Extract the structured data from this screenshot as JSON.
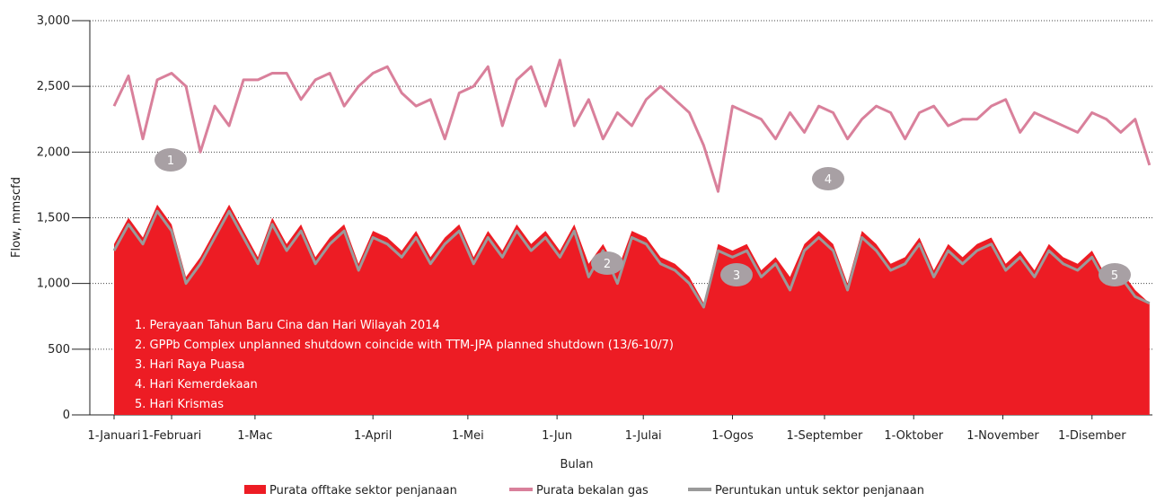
{
  "chart_data": {
    "type": "line",
    "y_label": "Flow, mmscfd",
    "x_label": "Bulan",
    "xlim": [
      1,
      362
    ],
    "xticks": [
      {
        "value": 1,
        "label": "1-Januari"
      },
      {
        "value": 21,
        "label": "1-Februari"
      },
      {
        "value": 50,
        "label": "1-Mac"
      },
      {
        "value": 91,
        "label": "1-April"
      },
      {
        "value": 124,
        "label": "1-Mei"
      },
      {
        "value": 155,
        "label": "1-Jun"
      },
      {
        "value": 185,
        "label": "1-Julai"
      },
      {
        "value": 216,
        "label": "1-Ogos"
      },
      {
        "value": 248,
        "label": "1-September"
      },
      {
        "value": 279,
        "label": "1-Oktober"
      },
      {
        "value": 310,
        "label": "1-November"
      },
      {
        "value": 341,
        "label": "1-Disember"
      }
    ],
    "ylim": [
      0,
      3000
    ],
    "yticks": [
      0,
      {
        "value": 500,
        "label": "500"
      },
      {
        "value": 1000,
        "label": "1,000"
      },
      {
        "value": 1500,
        "label": "1,500"
      },
      {
        "value": 2000,
        "label": "2,000"
      },
      {
        "value": 2500,
        "label": "2,500"
      },
      {
        "value": 3000,
        "label": "3,000"
      }
    ],
    "grid": true,
    "x": [
      1,
      6,
      11,
      16,
      21,
      26,
      31,
      36,
      41,
      46,
      51,
      56,
      61,
      66,
      71,
      76,
      81,
      86,
      91,
      96,
      101,
      106,
      111,
      116,
      121,
      126,
      131,
      136,
      141,
      146,
      151,
      156,
      161,
      166,
      171,
      176,
      181,
      186,
      191,
      196,
      201,
      206,
      211,
      216,
      221,
      226,
      231,
      236,
      241,
      246,
      251,
      256,
      261,
      266,
      271,
      276,
      281,
      286,
      291,
      296,
      301,
      306,
      311,
      316,
      321,
      326,
      331,
      336,
      341,
      346,
      351,
      356,
      361
    ],
    "series": [
      {
        "name": "Purata offtake sektor penjanaan",
        "color": "#ed1c24",
        "style": "area",
        "values": [
          1300,
          1500,
          1350,
          1600,
          1450,
          1050,
          1200,
          1400,
          1600,
          1400,
          1200,
          1500,
          1300,
          1450,
          1200,
          1350,
          1450,
          1150,
          1400,
          1350,
          1250,
          1400,
          1200,
          1350,
          1450,
          1200,
          1400,
          1250,
          1450,
          1300,
          1400,
          1250,
          1450,
          1150,
          1300,
          1100,
          1400,
          1350,
          1200,
          1150,
          1050,
          850,
          1300,
          1250,
          1300,
          1100,
          1200,
          1050,
          1300,
          1400,
          1300,
          1000,
          1400,
          1300,
          1150,
          1200,
          1350,
          1100,
          1300,
          1200,
          1300,
          1350,
          1150,
          1250,
          1100,
          1300,
          1200,
          1150,
          1250,
          1050,
          1100,
          950,
          850
        ]
      },
      {
        "name": "Purata bekalan gas",
        "color": "#d9809b",
        "style": "line",
        "values": [
          2350,
          2580,
          2100,
          2550,
          2600,
          2500,
          2000,
          2350,
          2200,
          2550,
          2550,
          2600,
          2600,
          2400,
          2550,
          2600,
          2350,
          2500,
          2600,
          2650,
          2450,
          2350,
          2400,
          2100,
          2450,
          2500,
          2650,
          2200,
          2550,
          2650,
          2350,
          2700,
          2200,
          2400,
          2100,
          2300,
          2200,
          2400,
          2500,
          2400,
          2300,
          2050,
          1700,
          2350,
          2300,
          2250,
          2100,
          2300,
          2150,
          2350,
          2300,
          2100,
          2250,
          2350,
          2300,
          2100,
          2300,
          2350,
          2200,
          2250,
          2250,
          2350,
          2400,
          2150,
          2300,
          2250,
          2200,
          2150,
          2300,
          2250,
          2150,
          2250,
          1900
        ]
      },
      {
        "name": "Peruntukan untuk sektor penjanaan",
        "color": "#9a9a9a",
        "style": "line",
        "values": [
          1250,
          1450,
          1300,
          1550,
          1400,
          1000,
          1150,
          1350,
          1550,
          1350,
          1150,
          1450,
          1250,
          1400,
          1150,
          1300,
          1400,
          1100,
          1350,
          1300,
          1200,
          1350,
          1150,
          1300,
          1400,
          1150,
          1350,
          1200,
          1400,
          1250,
          1350,
          1200,
          1400,
          1050,
          1250,
          1000,
          1350,
          1300,
          1150,
          1100,
          1000,
          820,
          1250,
          1200,
          1250,
          1050,
          1150,
          950,
          1250,
          1350,
          1250,
          950,
          1350,
          1250,
          1100,
          1150,
          1300,
          1050,
          1250,
          1150,
          1250,
          1300,
          1100,
          1200,
          1050,
          1250,
          1150,
          1100,
          1200,
          1000,
          1050,
          900,
          850
        ]
      }
    ],
    "annotations": [
      "1",
      "2",
      "3",
      "4",
      "5"
    ],
    "notes": [
      "1. Perayaan Tahun Baru Cina dan Hari Wilayah 2014",
      "2. GPPb Complex unplanned shutdown coincide with TTM-JPA planned shutdown (13/6-10/7)",
      "3. Hari Raya Puasa",
      "4. Hari Kemerdekaan",
      "5. Hari Krismas"
    ]
  }
}
